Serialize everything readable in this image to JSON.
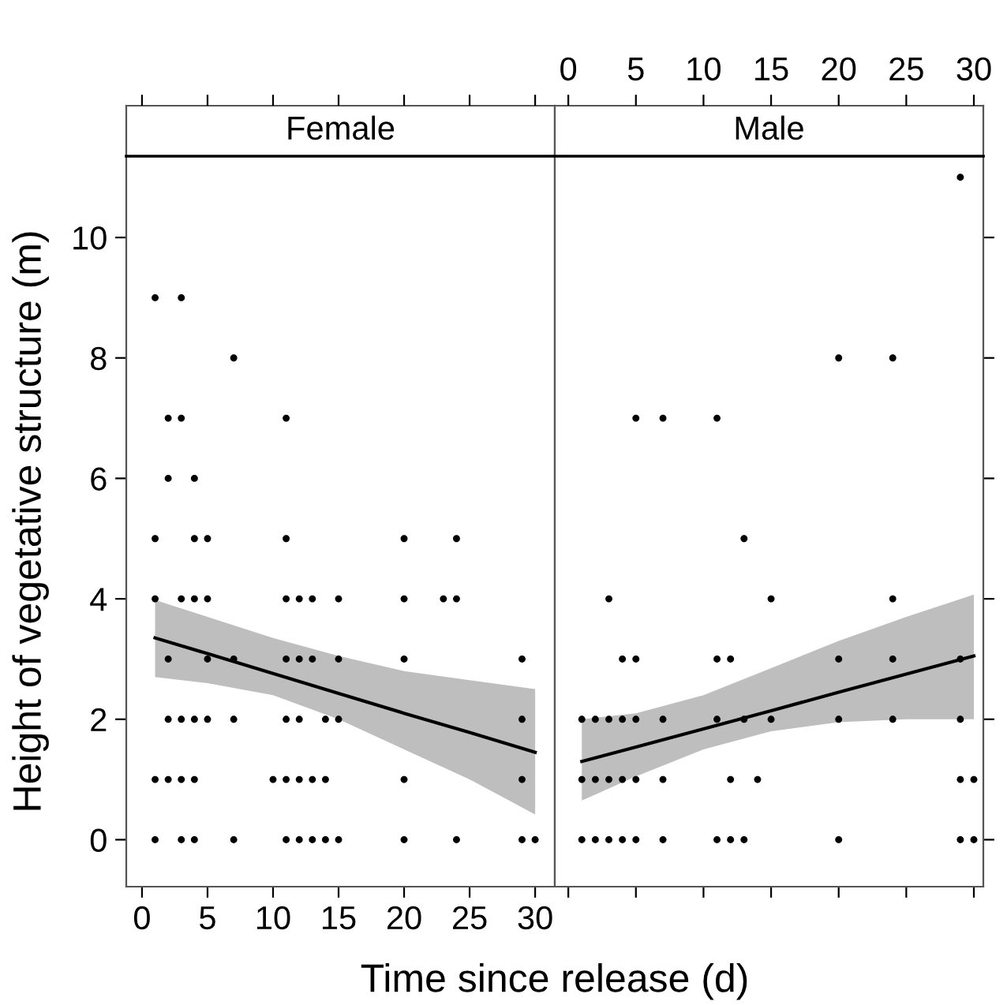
{
  "chart_data": [
    {
      "type": "scatter",
      "title": "Female",
      "xlabel": "Time since release (d)",
      "ylabel": "Height of vegetative structure (m)",
      "xlim": [
        -1.2,
        31.5
      ],
      "ylim": [
        -0.78,
        11.35
      ],
      "xticks": [
        0,
        5,
        10,
        15,
        20,
        25,
        30
      ],
      "yticks": [
        0,
        2,
        4,
        6,
        8,
        10
      ],
      "grid": false,
      "legend": false,
      "series": [
        {
          "color": "#000000",
          "marker": "circle",
          "x": [
            1,
            3,
            2,
            3,
            11,
            7,
            2,
            4,
            1,
            4,
            5,
            11,
            20,
            24,
            1,
            3,
            4,
            5,
            11,
            12,
            13,
            15,
            20,
            23,
            24,
            2,
            5,
            7,
            11,
            12,
            13,
            15,
            20,
            29,
            2,
            3,
            4,
            5,
            7,
            11,
            12,
            14,
            15,
            29,
            1,
            2,
            3,
            4,
            10,
            11,
            12,
            13,
            14,
            20,
            29,
            1,
            3,
            4,
            7,
            11,
            12,
            13,
            14,
            15,
            20,
            24,
            29,
            30
          ],
          "values": [
            9,
            9,
            7,
            7,
            7,
            8,
            6,
            6,
            5,
            5,
            5,
            5,
            5,
            5,
            4,
            4,
            4,
            4,
            4,
            4,
            4,
            4,
            4,
            4,
            4,
            3,
            3,
            3,
            3,
            3,
            3,
            3,
            3,
            3,
            2,
            2,
            2,
            2,
            2,
            2,
            2,
            2,
            2,
            2,
            1,
            1,
            1,
            1,
            1,
            1,
            1,
            1,
            1,
            1,
            1,
            0,
            0,
            0,
            0,
            0,
            0,
            0,
            0,
            0,
            0,
            0,
            0,
            0
          ]
        },
        {
          "type": "line",
          "color": "#000000",
          "line_style": "solid",
          "x": [
            1,
            5,
            10,
            15,
            20,
            25,
            30
          ],
          "values": [
            3.35,
            3.09,
            2.76,
            2.43,
            2.1,
            1.78,
            1.45
          ],
          "lower": [
            2.7,
            2.6,
            2.4,
            2.0,
            1.5,
            1.0,
            0.42
          ],
          "upper": [
            3.98,
            3.7,
            3.35,
            3.05,
            2.8,
            2.65,
            2.5
          ]
        }
      ]
    },
    {
      "type": "scatter",
      "title": "Male",
      "xlim": [
        -1.0,
        30.7
      ],
      "ylim": [
        -0.78,
        11.35
      ],
      "xticks": [
        0,
        5,
        10,
        15,
        20,
        25,
        30
      ],
      "yticks": [
        0,
        2,
        4,
        6,
        8,
        10
      ],
      "tick_labels": "x",
      "grid": false,
      "legend": false,
      "series": [
        {
          "color": "#000000",
          "marker": "circle",
          "x": [
            29,
            20,
            24,
            5,
            7,
            11,
            13,
            3,
            15,
            24,
            4,
            5,
            11,
            12,
            20,
            24,
            29,
            1,
            2,
            3,
            4,
            5,
            7,
            11,
            13,
            15,
            20,
            24,
            29,
            1,
            2,
            3,
            4,
            5,
            7,
            12,
            14,
            29,
            30,
            1,
            2,
            3,
            4,
            5,
            7,
            11,
            12,
            13,
            20,
            29,
            30
          ],
          "values": [
            11,
            8,
            8,
            7,
            7,
            7,
            5,
            4,
            4,
            4,
            3,
            3,
            3,
            3,
            3,
            3,
            3,
            2,
            2,
            2,
            2,
            2,
            2,
            2,
            2,
            2,
            2,
            2,
            2,
            1,
            1,
            1,
            1,
            1,
            1,
            1,
            1,
            1,
            1,
            0,
            0,
            0,
            0,
            0,
            0,
            0,
            0,
            0,
            0,
            0,
            0
          ]
        },
        {
          "type": "line",
          "color": "#000000",
          "line_style": "solid",
          "x": [
            1,
            5,
            10,
            15,
            20,
            25,
            30
          ],
          "values": [
            1.3,
            1.54,
            1.84,
            2.14,
            2.45,
            2.75,
            3.05
          ],
          "lower": [
            0.65,
            1.05,
            1.5,
            1.8,
            1.95,
            2.0,
            2.0
          ],
          "upper": [
            2.0,
            2.1,
            2.4,
            2.85,
            3.3,
            3.7,
            4.07
          ]
        }
      ]
    }
  ]
}
